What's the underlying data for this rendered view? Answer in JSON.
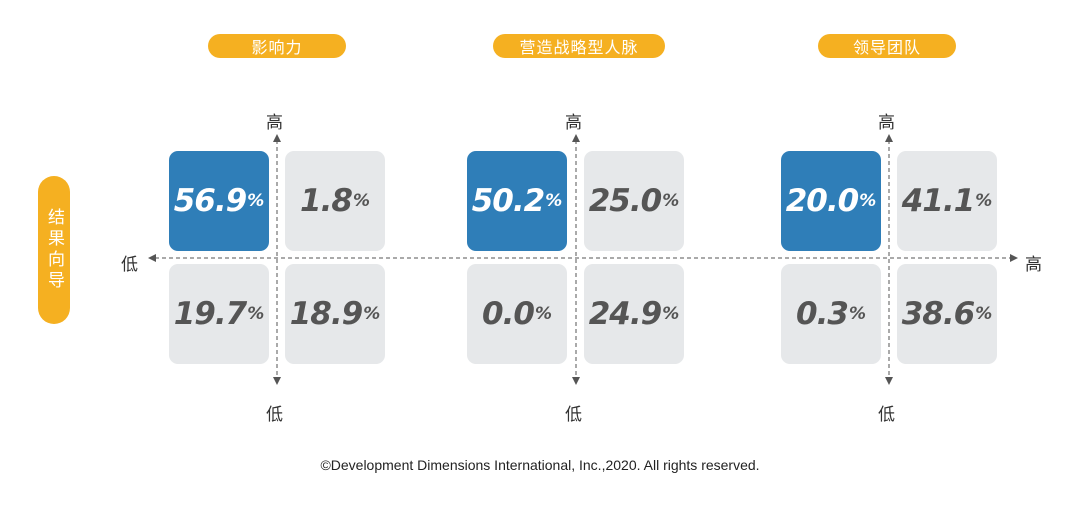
{
  "chart_data": {
    "type": "table",
    "y_axis_title": "结果向导",
    "axis_high": "高",
    "axis_low": "低",
    "unit": "%",
    "panels": [
      {
        "title": "影响力",
        "cells": {
          "top_left": "56.9",
          "top_right": "1.8",
          "bottom_left": "19.7",
          "bottom_right": "18.9"
        },
        "highlight": "top_left"
      },
      {
        "title": "营造战略型人脉",
        "cells": {
          "top_left": "50.2",
          "top_right": "25.0",
          "bottom_left": "0.0",
          "bottom_right": "24.9"
        },
        "highlight": "top_left"
      },
      {
        "title": "领导团队",
        "cells": {
          "top_left": "20.0",
          "top_right": "41.1",
          "bottom_left": "0.3",
          "bottom_right": "38.6"
        },
        "highlight": "top_left"
      }
    ]
  },
  "colors": {
    "accent": "#F5B021",
    "highlight_cell": "#2F7EB8",
    "normal_cell": "#E6E8EA",
    "axis": "#555555"
  },
  "footer": "©Development Dimensions International, Inc.,2020. All rights reserved."
}
